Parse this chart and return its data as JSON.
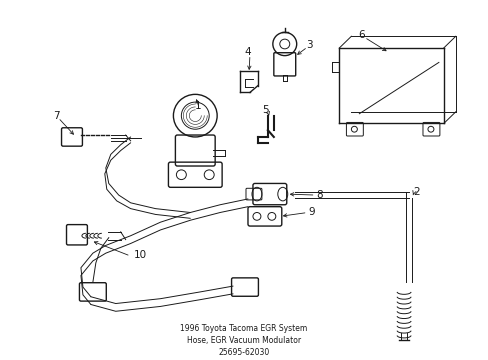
{
  "background_color": "#ffffff",
  "line_color": "#1a1a1a",
  "figsize": [
    4.89,
    3.6
  ],
  "dpi": 100,
  "title": "1996 Toyota Tacoma EGR System\nHose, EGR Vacuum Modulator\n25695-62030"
}
